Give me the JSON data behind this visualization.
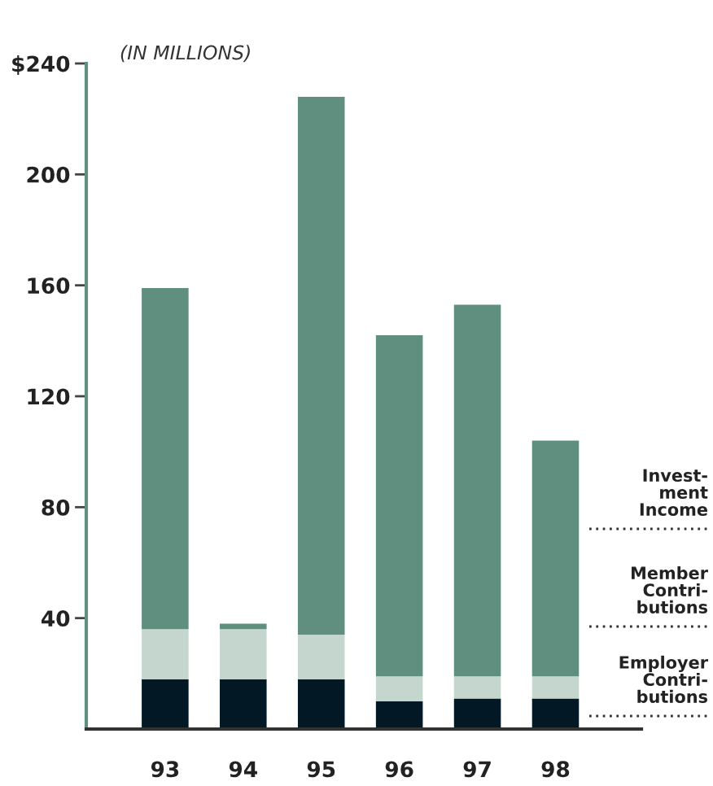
{
  "chart_data": {
    "type": "bar",
    "title": "(IN MILLIONS)",
    "stacked": true,
    "legend": "right",
    "grid": false,
    "categories": [
      "93",
      "94",
      "95",
      "96",
      "97",
      "98"
    ],
    "series": [
      {
        "name": "Employer\nContri-\nbutions",
        "color": "#021824",
        "values": [
          18,
          18,
          18,
          10,
          11,
          11
        ]
      },
      {
        "name": "Member\nContri-\nbutions",
        "color": "#c5d6cf",
        "values": [
          18,
          18,
          16,
          9,
          8,
          8
        ]
      },
      {
        "name": "Invest-\nment\nIncome",
        "color": "#618f7f",
        "values": [
          123,
          2,
          194,
          123,
          134,
          85
        ]
      }
    ],
    "ylim": [
      0,
      240
    ],
    "yticks": [
      {
        "value": 40,
        "label": "40"
      },
      {
        "value": 80,
        "label": "80"
      },
      {
        "value": 120,
        "label": "120"
      },
      {
        "value": 160,
        "label": "160"
      },
      {
        "value": 200,
        "label": "200"
      },
      {
        "value": 240,
        "label": "$240"
      }
    ]
  }
}
